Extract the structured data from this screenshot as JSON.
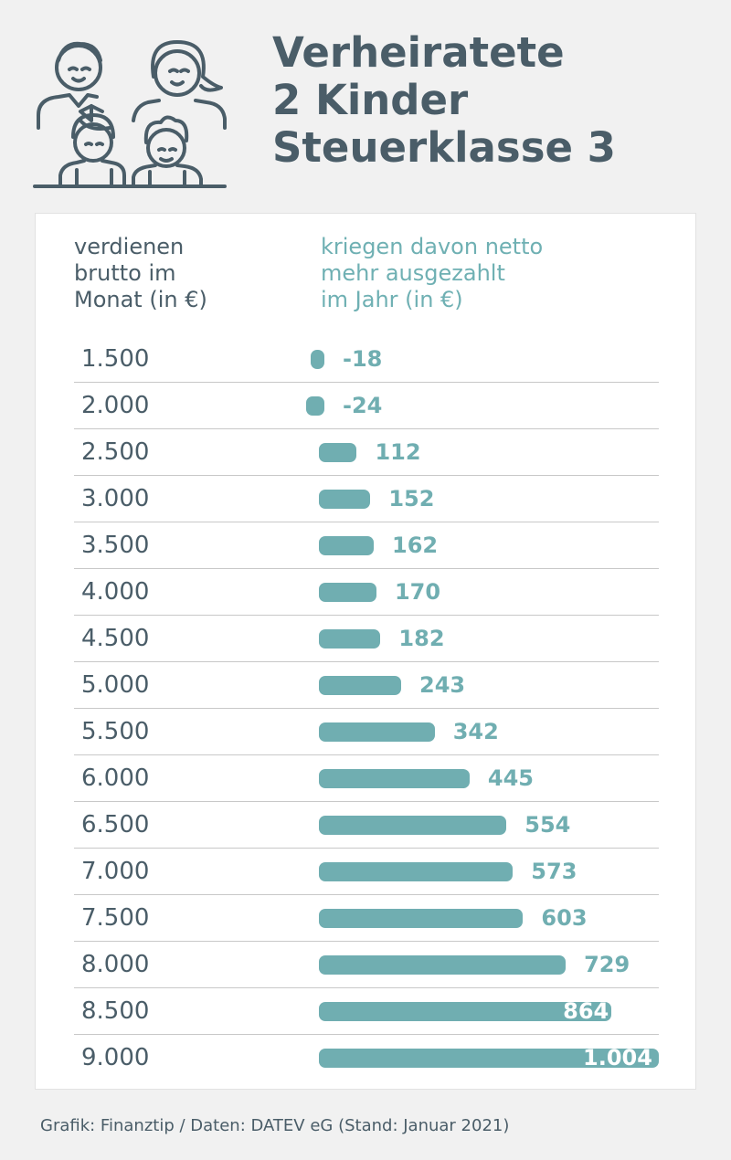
{
  "header": {
    "title_lines": [
      "Verheiratete",
      "2 Kinder",
      "Steuerklasse 3"
    ],
    "icon": "family-icon"
  },
  "columns": {
    "left_header": [
      "verdienen",
      "brutto im",
      "Monat (in €)"
    ],
    "right_header": [
      "kriegen davon netto",
      "mehr ausgezahlt",
      "im Jahr (in €)"
    ]
  },
  "footer": {
    "source": "Grafik: Finanztip / Daten: DATEV eG (Stand: Januar 2021)"
  },
  "colors": {
    "bar": "#70aeb1",
    "title": "#4a5d68",
    "accent_text": "#6fb0b3",
    "background": "#f1f1f1"
  },
  "chart_data": {
    "type": "bar",
    "orientation": "horizontal",
    "categories": [
      "1.500",
      "2.000",
      "2.500",
      "3.000",
      "3.500",
      "4.000",
      "4.500",
      "5.000",
      "5.500",
      "6.000",
      "6.500",
      "7.000",
      "7.500",
      "8.000",
      "8.500",
      "9.000"
    ],
    "values": [
      -18,
      -24,
      112,
      152,
      162,
      170,
      182,
      243,
      342,
      445,
      554,
      573,
      603,
      729,
      864,
      1004
    ],
    "value_labels": [
      "-18",
      "-24",
      "112",
      "152",
      "162",
      "170",
      "182",
      "243",
      "342",
      "445",
      "554",
      "573",
      "603",
      "729",
      "864",
      "1.004"
    ],
    "xlim": [
      -24,
      1004
    ],
    "grid": false,
    "legend": "none"
  }
}
